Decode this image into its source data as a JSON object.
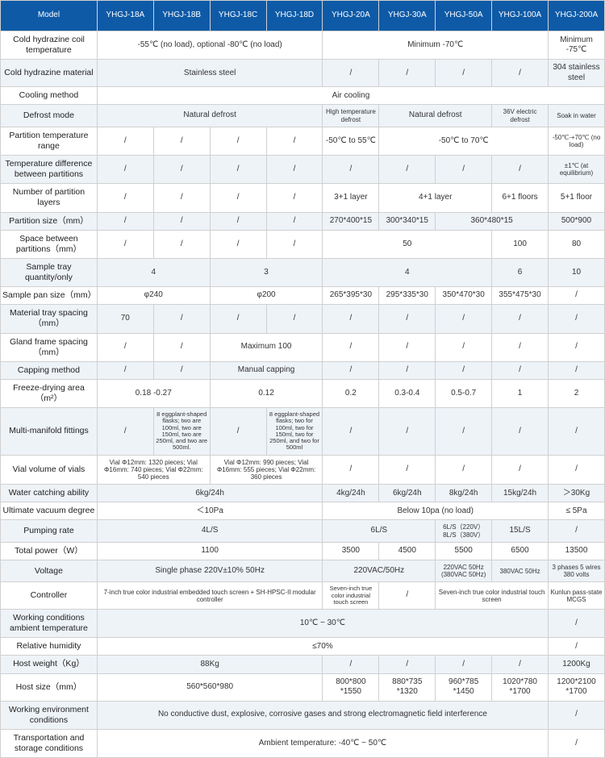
{
  "colors": {
    "header_bg": "#0e5aa7",
    "header_fg": "#ffffff",
    "alt_row": "#eef3f8",
    "row": "#ffffff",
    "border": "#d0d0d0",
    "text": "#333333"
  },
  "columns": [
    "Model",
    "YHGJ-18A",
    "YHGJ-18B",
    "YHGJ-18C",
    "YHGJ-18D",
    "YHGJ-20A",
    "YHGJ-30A",
    "YHGJ-50A",
    "YHGJ-100A",
    "YHGJ-200A"
  ],
  "rows": [
    {
      "label": "Cold hydrazine coil temperature",
      "cells": [
        {
          "span": 4,
          "v": "-55℃ (no load), optional -80℃ (no load)"
        },
        {
          "span": 4,
          "v": "Minimum -70℃"
        },
        {
          "span": 1,
          "v": "Minimum -75℃"
        }
      ]
    },
    {
      "label": "Cold hydrazine material",
      "cells": [
        {
          "span": 4,
          "v": "Stainless steel"
        },
        {
          "span": 1,
          "v": "/"
        },
        {
          "span": 1,
          "v": "/"
        },
        {
          "span": 1,
          "v": "/"
        },
        {
          "span": 1,
          "v": "/"
        },
        {
          "span": 1,
          "v": "304 stainless steel"
        }
      ]
    },
    {
      "label": "Cooling method",
      "cells": [
        {
          "span": 9,
          "v": "Air cooling"
        }
      ]
    },
    {
      "label": "Defrost mode",
      "cells": [
        {
          "span": 4,
          "v": "Natural defrost"
        },
        {
          "span": 1,
          "v": "High temperature defrost",
          "cls": "small"
        },
        {
          "span": 2,
          "v": "Natural defrost"
        },
        {
          "span": 1,
          "v": "36V electric defrost",
          "cls": "small"
        },
        {
          "span": 1,
          "v": "Soak in water",
          "cls": "small"
        }
      ]
    },
    {
      "label": "Partition temperature range",
      "cells": [
        {
          "span": 1,
          "v": "/"
        },
        {
          "span": 1,
          "v": "/"
        },
        {
          "span": 1,
          "v": "/"
        },
        {
          "span": 1,
          "v": "/"
        },
        {
          "span": 1,
          "v": "-50℃ to 55℃"
        },
        {
          "span": 3,
          "v": "-50℃ to 70℃"
        },
        {
          "span": 1,
          "v": "-50℃-+70℃ (no load)",
          "cls": "small"
        }
      ]
    },
    {
      "label": "Temperature difference between partitions",
      "cells": [
        {
          "span": 1,
          "v": "/"
        },
        {
          "span": 1,
          "v": "/"
        },
        {
          "span": 1,
          "v": "/"
        },
        {
          "span": 1,
          "v": "/"
        },
        {
          "span": 1,
          "v": "/"
        },
        {
          "span": 1,
          "v": "/"
        },
        {
          "span": 1,
          "v": "/"
        },
        {
          "span": 1,
          "v": "/"
        },
        {
          "span": 1,
          "v": "±1℃ (at equilibrium)",
          "cls": "small"
        }
      ]
    },
    {
      "label": "Number of partition layers",
      "cells": [
        {
          "span": 1,
          "v": "/"
        },
        {
          "span": 1,
          "v": "/"
        },
        {
          "span": 1,
          "v": "/"
        },
        {
          "span": 1,
          "v": "/"
        },
        {
          "span": 1,
          "v": "3+1 layer"
        },
        {
          "span": 2,
          "v": "4+1 layer"
        },
        {
          "span": 1,
          "v": "6+1 floors"
        },
        {
          "span": 1,
          "v": "5+1 floor"
        }
      ]
    },
    {
      "label": "Partition size（mm）",
      "cells": [
        {
          "span": 1,
          "v": "/"
        },
        {
          "span": 1,
          "v": "/"
        },
        {
          "span": 1,
          "v": "/"
        },
        {
          "span": 1,
          "v": "/"
        },
        {
          "span": 1,
          "v": "270*400*15"
        },
        {
          "span": 1,
          "v": "300*340*15"
        },
        {
          "span": 2,
          "v": "360*480*15"
        },
        {
          "span": 1,
          "v": "500*900"
        }
      ]
    },
    {
      "label": "Space between partitions（mm）",
      "cells": [
        {
          "span": 1,
          "v": "/"
        },
        {
          "span": 1,
          "v": "/"
        },
        {
          "span": 1,
          "v": "/"
        },
        {
          "span": 1,
          "v": "/"
        },
        {
          "span": 3,
          "v": "50"
        },
        {
          "span": 1,
          "v": "100"
        },
        {
          "span": 1,
          "v": "80"
        }
      ]
    },
    {
      "label": "Sample tray quantity/only",
      "cells": [
        {
          "span": 2,
          "v": "4"
        },
        {
          "span": 2,
          "v": "3"
        },
        {
          "span": 3,
          "v": "4"
        },
        {
          "span": 1,
          "v": "6"
        },
        {
          "span": 1,
          "v": "10"
        }
      ]
    },
    {
      "label": "Sample pan size（mm）",
      "cells": [
        {
          "span": 2,
          "v": "φ240"
        },
        {
          "span": 2,
          "v": "φ200"
        },
        {
          "span": 1,
          "v": "265*395*30"
        },
        {
          "span": 1,
          "v": "295*335*30"
        },
        {
          "span": 1,
          "v": "350*470*30"
        },
        {
          "span": 1,
          "v": "355*475*30"
        },
        {
          "span": 1,
          "v": "/"
        }
      ]
    },
    {
      "label": "Material tray spacing（mm）",
      "cells": [
        {
          "span": 1,
          "v": "70"
        },
        {
          "span": 1,
          "v": "/"
        },
        {
          "span": 1,
          "v": "/"
        },
        {
          "span": 1,
          "v": "/"
        },
        {
          "span": 1,
          "v": "/"
        },
        {
          "span": 1,
          "v": "/"
        },
        {
          "span": 1,
          "v": "/"
        },
        {
          "span": 1,
          "v": "/"
        },
        {
          "span": 1,
          "v": "/"
        }
      ]
    },
    {
      "label": "Gland frame spacing（mm）",
      "cells": [
        {
          "span": 1,
          "v": "/"
        },
        {
          "span": 1,
          "v": "/"
        },
        {
          "span": 2,
          "v": "Maximum 100"
        },
        {
          "span": 1,
          "v": "/"
        },
        {
          "span": 1,
          "v": "/"
        },
        {
          "span": 1,
          "v": "/"
        },
        {
          "span": 1,
          "v": "/"
        },
        {
          "span": 1,
          "v": "/"
        }
      ]
    },
    {
      "label": "Capping method",
      "cells": [
        {
          "span": 1,
          "v": "/"
        },
        {
          "span": 1,
          "v": "/"
        },
        {
          "span": 2,
          "v": "Manual capping"
        },
        {
          "span": 1,
          "v": "/"
        },
        {
          "span": 1,
          "v": "/"
        },
        {
          "span": 1,
          "v": "/"
        },
        {
          "span": 1,
          "v": "/"
        },
        {
          "span": 1,
          "v": "/"
        }
      ]
    },
    {
      "label": "Freeze-drying area（m²）",
      "cells": [
        {
          "span": 2,
          "v": "0.18 -0.27"
        },
        {
          "span": 2,
          "v": "0.12"
        },
        {
          "span": 1,
          "v": "0.2"
        },
        {
          "span": 1,
          "v": "0.3-0.4"
        },
        {
          "span": 1,
          "v": "0.5-0.7"
        },
        {
          "span": 1,
          "v": "1"
        },
        {
          "span": 1,
          "v": "2"
        }
      ]
    },
    {
      "label": "Multi-manifold fittings",
      "cells": [
        {
          "span": 1,
          "v": "/"
        },
        {
          "span": 1,
          "v": "8 eggplant-shaped flasks; two are 100ml, two are 150ml, two are 250ml, and two are 500ml.",
          "cls": "tiny"
        },
        {
          "span": 1,
          "v": "/"
        },
        {
          "span": 1,
          "v": "8 eggplant-shaped flasks; two for 100ml, two for 150ml, two for 250ml, and two for 500ml",
          "cls": "tiny"
        },
        {
          "span": 1,
          "v": "/"
        },
        {
          "span": 1,
          "v": "/"
        },
        {
          "span": 1,
          "v": "/"
        },
        {
          "span": 1,
          "v": "/"
        },
        {
          "span": 1,
          "v": "/"
        }
      ]
    },
    {
      "label": "Vial volume of vials",
      "cells": [
        {
          "span": 2,
          "v": "Vial Φ12mm: 1320 pieces; Vial Φ16mm: 740 pieces; Vial Φ22mm: 540 pieces",
          "cls": "small"
        },
        {
          "span": 2,
          "v": "Vial Φ12mm: 990 pieces; Vial Φ16mm: 555 pieces; Vial Φ22mm: 360 pieces",
          "cls": "small"
        },
        {
          "span": 1,
          "v": "/"
        },
        {
          "span": 1,
          "v": "/"
        },
        {
          "span": 1,
          "v": "/"
        },
        {
          "span": 1,
          "v": "/"
        },
        {
          "span": 1,
          "v": "/"
        }
      ]
    },
    {
      "label": "Water catching ability",
      "cells": [
        {
          "span": 4,
          "v": "6kg/24h"
        },
        {
          "span": 1,
          "v": "4kg/24h"
        },
        {
          "span": 1,
          "v": "6kg/24h"
        },
        {
          "span": 1,
          "v": "8kg/24h"
        },
        {
          "span": 1,
          "v": "15kg/24h"
        },
        {
          "span": 1,
          "v": "＞30Kg"
        }
      ]
    },
    {
      "label": "Ultimate vacuum degree",
      "cells": [
        {
          "span": 4,
          "v": "＜10Pa"
        },
        {
          "span": 4,
          "v": "Below 10pa (no load)"
        },
        {
          "span": 1,
          "v": "≤ 5Pa"
        }
      ]
    },
    {
      "label": "Pumping rate",
      "cells": [
        {
          "span": 4,
          "v": "4L/S"
        },
        {
          "span": 2,
          "v": "6L/S"
        },
        {
          "span": 1,
          "v": "6L/S（220V）8L/S（380V）",
          "cls": "small"
        },
        {
          "span": 1,
          "v": "15L/S"
        },
        {
          "span": 1,
          "v": "/"
        }
      ]
    },
    {
      "label": "Total power（W）",
      "cells": [
        {
          "span": 4,
          "v": "1100"
        },
        {
          "span": 1,
          "v": "3500"
        },
        {
          "span": 1,
          "v": "4500"
        },
        {
          "span": 1,
          "v": "5500"
        },
        {
          "span": 1,
          "v": "6500"
        },
        {
          "span": 1,
          "v": "13500"
        }
      ]
    },
    {
      "label": "Voltage",
      "cells": [
        {
          "span": 4,
          "v": "Single phase 220V±10% 50Hz"
        },
        {
          "span": 2,
          "v": "220VAC/50Hz"
        },
        {
          "span": 1,
          "v": "220VAC 50Hz (380VAC 50Hz)",
          "cls": "small"
        },
        {
          "span": 1,
          "v": "380VAC 50Hz",
          "cls": "small"
        },
        {
          "span": 1,
          "v": "3 phases 5 wires 380 volts",
          "cls": "small"
        }
      ]
    },
    {
      "label": "Controller",
      "cells": [
        {
          "span": 4,
          "v": "7-inch true color industrial embedded touch screen + SH-HPSC-II modular controller",
          "cls": "small"
        },
        {
          "span": 1,
          "v": "Seven-inch true color industrial touch screen",
          "cls": "tiny"
        },
        {
          "span": 1,
          "v": "/"
        },
        {
          "span": 2,
          "v": "Seven-inch true color industrial touch screen",
          "cls": "small"
        },
        {
          "span": 1,
          "v": "Kunlun pass-state MCGS",
          "cls": "small"
        }
      ]
    },
    {
      "label": "Working conditions ambient temperature",
      "cells": [
        {
          "span": 8,
          "v": "10℃ ~ 30℃"
        },
        {
          "span": 1,
          "v": "/"
        }
      ]
    },
    {
      "label": "Relative humidity",
      "cells": [
        {
          "span": 8,
          "v": "≤70%"
        },
        {
          "span": 1,
          "v": "/"
        }
      ]
    },
    {
      "label": "Host weight（Kg）",
      "cells": [
        {
          "span": 4,
          "v": "88Kg"
        },
        {
          "span": 1,
          "v": "/"
        },
        {
          "span": 1,
          "v": "/"
        },
        {
          "span": 1,
          "v": "/"
        },
        {
          "span": 1,
          "v": "/"
        },
        {
          "span": 1,
          "v": "1200Kg"
        }
      ]
    },
    {
      "label": "Host size（mm）",
      "cells": [
        {
          "span": 4,
          "v": "560*560*980"
        },
        {
          "span": 1,
          "v": "800*800 *1550"
        },
        {
          "span": 1,
          "v": "880*735 *1320"
        },
        {
          "span": 1,
          "v": "960*785 *1450"
        },
        {
          "span": 1,
          "v": "1020*780 *1700"
        },
        {
          "span": 1,
          "v": "1200*2100 *1700"
        }
      ]
    },
    {
      "label": "Working environment conditions",
      "cells": [
        {
          "span": 8,
          "v": "No conductive dust, explosive, corrosive gases and strong electromagnetic field interference"
        },
        {
          "span": 1,
          "v": "/"
        }
      ]
    },
    {
      "label": "Transportation and storage conditions",
      "cells": [
        {
          "span": 8,
          "v": "Ambient temperature: -40℃ ~ 50℃"
        },
        {
          "span": 1,
          "v": "/"
        }
      ]
    }
  ]
}
